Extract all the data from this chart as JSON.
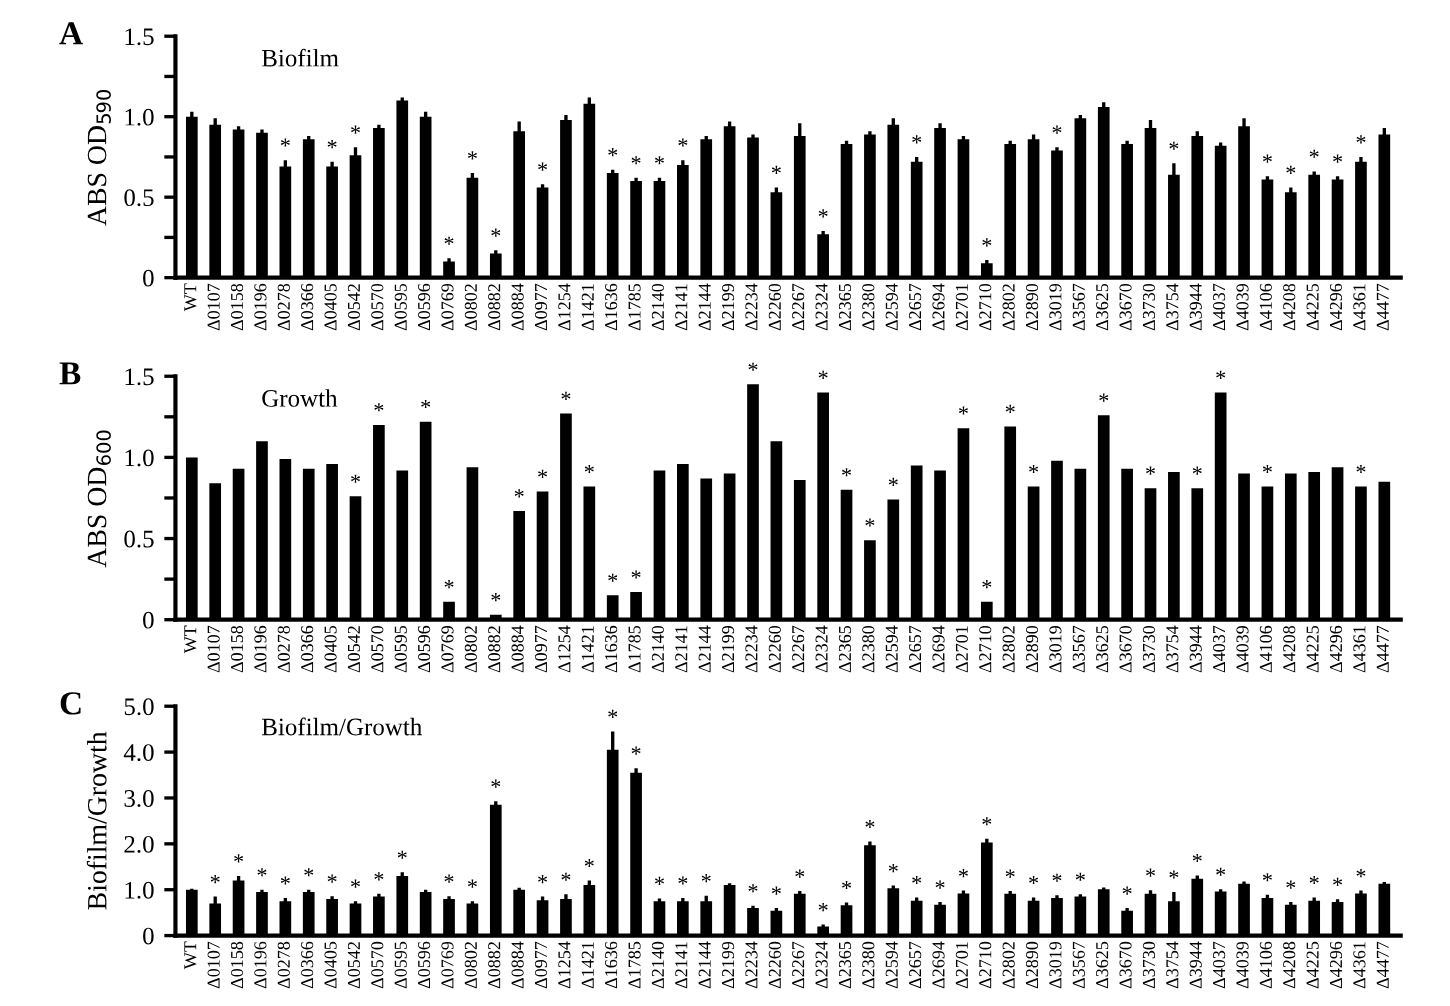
{
  "chart_data": [
    {
      "type": "bar",
      "title": "A",
      "subtitle": "Biofilm",
      "ylabel": "ABS OD$_{590}$",
      "color": "#000000",
      "categories": [
        "WT",
        "Δ0107",
        "Δ0158",
        "Δ0196",
        "Δ0278",
        "Δ0366",
        "Δ0405",
        "Δ0542",
        "Δ0570",
        "Δ0595",
        "Δ0596",
        "Δ0769",
        "Δ0802",
        "Δ0882",
        "Δ0884",
        "Δ0977",
        "Δ1254",
        "Δ1421",
        "Δ1636",
        "Δ1785",
        "Δ2140",
        "Δ2141",
        "Δ2144",
        "Δ2199",
        "Δ2234",
        "Δ2260",
        "Δ2267",
        "Δ2324",
        "Δ2365",
        "Δ2380",
        "Δ2594",
        "Δ2657",
        "Δ2694",
        "Δ2701",
        "Δ2710",
        "Δ2802",
        "Δ2890",
        "Δ3019",
        "Δ3567",
        "Δ3625",
        "Δ3670",
        "Δ3730",
        "Δ3754",
        "Δ3944",
        "Δ4037",
        "Δ4039",
        "Δ4106",
        "Δ4208",
        "Δ4225",
        "Δ4296",
        "Δ4361",
        "Δ4477"
      ],
      "values": [
        1.0,
        0.95,
        0.92,
        0.9,
        0.69,
        0.86,
        0.69,
        0.76,
        0.93,
        1.1,
        1.0,
        0.1,
        0.62,
        0.15,
        0.91,
        0.56,
        0.98,
        1.08,
        0.65,
        0.6,
        0.6,
        0.7,
        0.86,
        0.94,
        0.87,
        0.53,
        0.88,
        0.27,
        0.83,
        0.89,
        0.95,
        0.72,
        0.93,
        0.86,
        0.09,
        0.83,
        0.86,
        0.79,
        0.99,
        1.06,
        0.83,
        0.93,
        0.64,
        0.88,
        0.82,
        0.94,
        0.61,
        0.53,
        0.64,
        0.61,
        0.72,
        0.89
      ],
      "errors": [
        0.03,
        0.04,
        0.02,
        0.02,
        0.04,
        0.02,
        0.03,
        0.05,
        0.02,
        0.02,
        0.03,
        0.02,
        0.03,
        0.02,
        0.06,
        0.02,
        0.03,
        0.04,
        0.02,
        0.02,
        0.02,
        0.03,
        0.02,
        0.03,
        0.02,
        0.03,
        0.08,
        0.02,
        0.02,
        0.02,
        0.04,
        0.03,
        0.03,
        0.02,
        0.02,
        0.02,
        0.03,
        0.02,
        0.02,
        0.03,
        0.02,
        0.05,
        0.07,
        0.03,
        0.02,
        0.05,
        0.02,
        0.03,
        0.02,
        0.02,
        0.03,
        0.04
      ],
      "value_labels": [
        null,
        null,
        null,
        null,
        "*",
        null,
        "*",
        "*",
        null,
        null,
        null,
        "*",
        "*",
        "*",
        null,
        "*",
        null,
        null,
        "*",
        "*",
        "*",
        "*",
        null,
        null,
        null,
        "*",
        null,
        "*",
        null,
        null,
        null,
        "*",
        null,
        null,
        "*",
        null,
        null,
        "*",
        null,
        null,
        null,
        null,
        "*",
        null,
        null,
        null,
        "*",
        "*",
        "*",
        "*",
        "*",
        null
      ],
      "ylim": [
        0,
        1.5
      ],
      "yticks": [
        {
          "value": 0,
          "label": "0"
        },
        {
          "value": 0.25,
          "label": null
        },
        {
          "value": 0.5,
          "label": "0.5"
        },
        {
          "value": 0.75,
          "label": null
        },
        {
          "value": 1.0,
          "label": "1.0"
        },
        {
          "value": 1.25,
          "label": null
        },
        {
          "value": 1.5,
          "label": "1.5"
        }
      ],
      "grid": false,
      "legend": false
    },
    {
      "type": "bar",
      "title": "B",
      "subtitle": "Growth",
      "ylabel": "ABS OD$_{600}$",
      "color": "#000000",
      "categories": [
        "WT",
        "Δ0107",
        "Δ0158",
        "Δ0196",
        "Δ0278",
        "Δ0366",
        "Δ0405",
        "Δ0542",
        "Δ0570",
        "Δ0595",
        "Δ0596",
        "Δ0769",
        "Δ0802",
        "Δ0882",
        "Δ0884",
        "Δ0977",
        "Δ1254",
        "Δ1421",
        "Δ1636",
        "Δ1785",
        "Δ2140",
        "Δ2141",
        "Δ2144",
        "Δ2199",
        "Δ2234",
        "Δ2260",
        "Δ2267",
        "Δ2324",
        "Δ2365",
        "Δ2380",
        "Δ2594",
        "Δ2657",
        "Δ2694",
        "Δ2701",
        "Δ2710",
        "Δ2802",
        "Δ2890",
        "Δ3019",
        "Δ3567",
        "Δ3625",
        "Δ3670",
        "Δ3730",
        "Δ3754",
        "Δ3944",
        "Δ4037",
        "Δ4039",
        "Δ4106",
        "Δ4208",
        "Δ4225",
        "Δ4296",
        "Δ4361",
        "Δ4477"
      ],
      "values": [
        1.0,
        0.84,
        0.93,
        1.1,
        0.99,
        0.93,
        0.96,
        0.76,
        1.2,
        0.92,
        1.22,
        0.11,
        0.94,
        0.03,
        0.67,
        0.79,
        1.27,
        0.82,
        0.15,
        0.17,
        0.92,
        0.96,
        0.87,
        0.9,
        1.45,
        1.1,
        0.86,
        1.4,
        0.8,
        0.49,
        0.74,
        0.95,
        0.92,
        1.18,
        0.11,
        1.19,
        0.82,
        0.98,
        0.93,
        1.26,
        0.93,
        0.81,
        0.91,
        0.81,
        1.4,
        0.9,
        0.82,
        0.9,
        0.91,
        0.94,
        0.82,
        0.85
      ],
      "value_labels": [
        null,
        null,
        null,
        null,
        null,
        null,
        null,
        "*",
        "*",
        null,
        "*",
        "*",
        null,
        "*",
        "*",
        "*",
        "*",
        "*",
        "*",
        "*",
        null,
        null,
        null,
        null,
        "*",
        null,
        null,
        "*",
        "*",
        "*",
        "*",
        null,
        null,
        "*",
        "*",
        "*",
        "*",
        null,
        null,
        "*",
        null,
        "*",
        null,
        "*",
        "*",
        null,
        "*",
        null,
        null,
        null,
        "*",
        null
      ],
      "ylim": [
        0,
        1.5
      ],
      "yticks": [
        {
          "value": 0,
          "label": "0"
        },
        {
          "value": 0.25,
          "label": null
        },
        {
          "value": 0.5,
          "label": "0.5"
        },
        {
          "value": 0.75,
          "label": null
        },
        {
          "value": 1.0,
          "label": "1.0"
        },
        {
          "value": 1.25,
          "label": null
        },
        {
          "value": 1.5,
          "label": "1.5"
        }
      ],
      "grid": false,
      "legend": false
    },
    {
      "type": "bar",
      "title": "C",
      "subtitle": "Biofilm/Growth",
      "ylabel": "Biofilm/Growth",
      "color": "#000000",
      "categories": [
        "WT",
        "Δ0107",
        "Δ0158",
        "Δ0196",
        "Δ0278",
        "Δ0366",
        "Δ0405",
        "Δ0542",
        "Δ0570",
        "Δ0595",
        "Δ0596",
        "Δ0769",
        "Δ0802",
        "Δ0882",
        "Δ0884",
        "Δ0977",
        "Δ1254",
        "Δ1421",
        "Δ1636",
        "Δ1785",
        "Δ2140",
        "Δ2141",
        "Δ2144",
        "Δ2199",
        "Δ2234",
        "Δ2260",
        "Δ2267",
        "Δ2324",
        "Δ2365",
        "Δ2380",
        "Δ2594",
        "Δ2657",
        "Δ2694",
        "Δ2701",
        "Δ2710",
        "Δ2802",
        "Δ2890",
        "Δ3019",
        "Δ3567",
        "Δ3625",
        "Δ3670",
        "Δ3730",
        "Δ3754",
        "Δ3944",
        "Δ4037",
        "Δ4039",
        "Δ4106",
        "Δ4208",
        "Δ4225",
        "Δ4296",
        "Δ4361",
        "Δ4477"
      ],
      "values": [
        1.0,
        0.7,
        1.2,
        0.95,
        0.75,
        0.95,
        0.8,
        0.7,
        0.85,
        1.3,
        0.95,
        0.8,
        0.7,
        2.85,
        1.0,
        0.77,
        0.8,
        1.1,
        4.05,
        3.55,
        0.75,
        0.75,
        0.75,
        1.1,
        0.6,
        0.54,
        0.91,
        0.2,
        0.66,
        1.97,
        1.03,
        0.76,
        0.67,
        0.92,
        2.03,
        0.91,
        0.76,
        0.82,
        0.85,
        1.01,
        0.54,
        0.91,
        0.75,
        1.24,
        0.96,
        1.13,
        0.82,
        0.67,
        0.76,
        0.73,
        0.92,
        1.13
      ],
      "errors": [
        0.02,
        0.15,
        0.1,
        0.05,
        0.07,
        0.05,
        0.06,
        0.05,
        0.06,
        0.08,
        0.05,
        0.06,
        0.05,
        0.08,
        0.04,
        0.08,
        0.1,
        0.1,
        0.4,
        0.1,
        0.06,
        0.07,
        0.12,
        0.04,
        0.05,
        0.06,
        0.06,
        0.04,
        0.06,
        0.08,
        0.06,
        0.07,
        0.06,
        0.06,
        0.08,
        0.06,
        0.07,
        0.06,
        0.05,
        0.04,
        0.06,
        0.08,
        0.2,
        0.07,
        0.05,
        0.05,
        0.07,
        0.06,
        0.07,
        0.06,
        0.06,
        0.04
      ],
      "value_labels": [
        null,
        "*",
        "*",
        "*",
        "*",
        "*",
        "*",
        "*",
        "*",
        "*",
        null,
        "*",
        "*",
        "*",
        null,
        "*",
        "*",
        "*",
        "*",
        "*",
        "*",
        "*",
        "*",
        null,
        "*",
        "*",
        "*",
        "*",
        "*",
        "*",
        "*",
        "*",
        "*",
        "*",
        "*",
        "*",
        "*",
        "*",
        "*",
        null,
        "*",
        "*",
        "*",
        "*",
        "*",
        null,
        "*",
        "*",
        "*",
        "*",
        "*",
        null
      ],
      "ylim": [
        0,
        5.0
      ],
      "yticks": [
        {
          "value": 0,
          "label": "0"
        },
        {
          "value": 1.0,
          "label": "1.0"
        },
        {
          "value": 2.0,
          "label": "2.0"
        },
        {
          "value": 3.0,
          "label": "3.0"
        },
        {
          "value": 4.0,
          "label": "4.0"
        },
        {
          "value": 5.0,
          "label": "5.0"
        }
      ],
      "grid": false,
      "legend": false
    }
  ]
}
